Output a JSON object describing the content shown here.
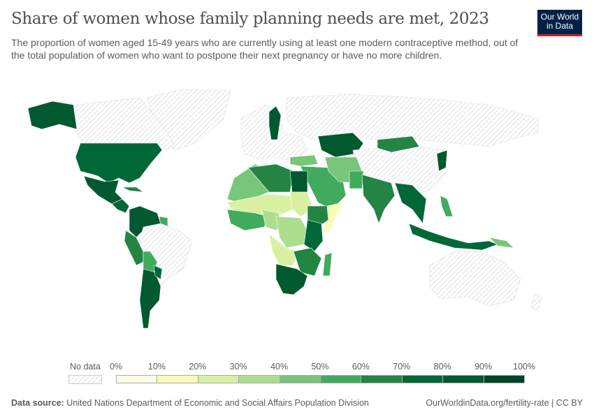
{
  "header": {
    "title": "Share of women whose family planning needs are met, 2023",
    "subtitle": "The proportion of women aged 15-49 years who are currently using at least one modern contraceptive method, out of the total population of women who want to postpone their next pregnancy or have no more children.",
    "logo_line1": "Our World",
    "logo_line2": "in Data"
  },
  "legend": {
    "no_data_label": "No data",
    "ticks": [
      "0%",
      "10%",
      "20%",
      "30%",
      "40%",
      "50%",
      "60%",
      "70%",
      "80%",
      "90%",
      "100%"
    ],
    "bin_colors": [
      "#ffffe5",
      "#f7fcb9",
      "#d9f0a3",
      "#addd8e",
      "#78c679",
      "#41ab5d",
      "#238443",
      "#006837",
      "#00592f",
      "#004529"
    ],
    "no_data_color": "#eeeeee"
  },
  "footer": {
    "source_label": "Data source:",
    "source": "United Nations Department of Economic and Social Affairs Population Division",
    "link": "OurWorldinData.org/fertility-rate | CC BY"
  },
  "chart_data": {
    "type": "choropleth",
    "title": "Share of women whose family planning needs are met, 2023",
    "year": 2023,
    "unit": "%",
    "scale": [
      0,
      100
    ],
    "bins": [
      0,
      10,
      20,
      30,
      40,
      50,
      60,
      70,
      80,
      90,
      100
    ]
  }
}
